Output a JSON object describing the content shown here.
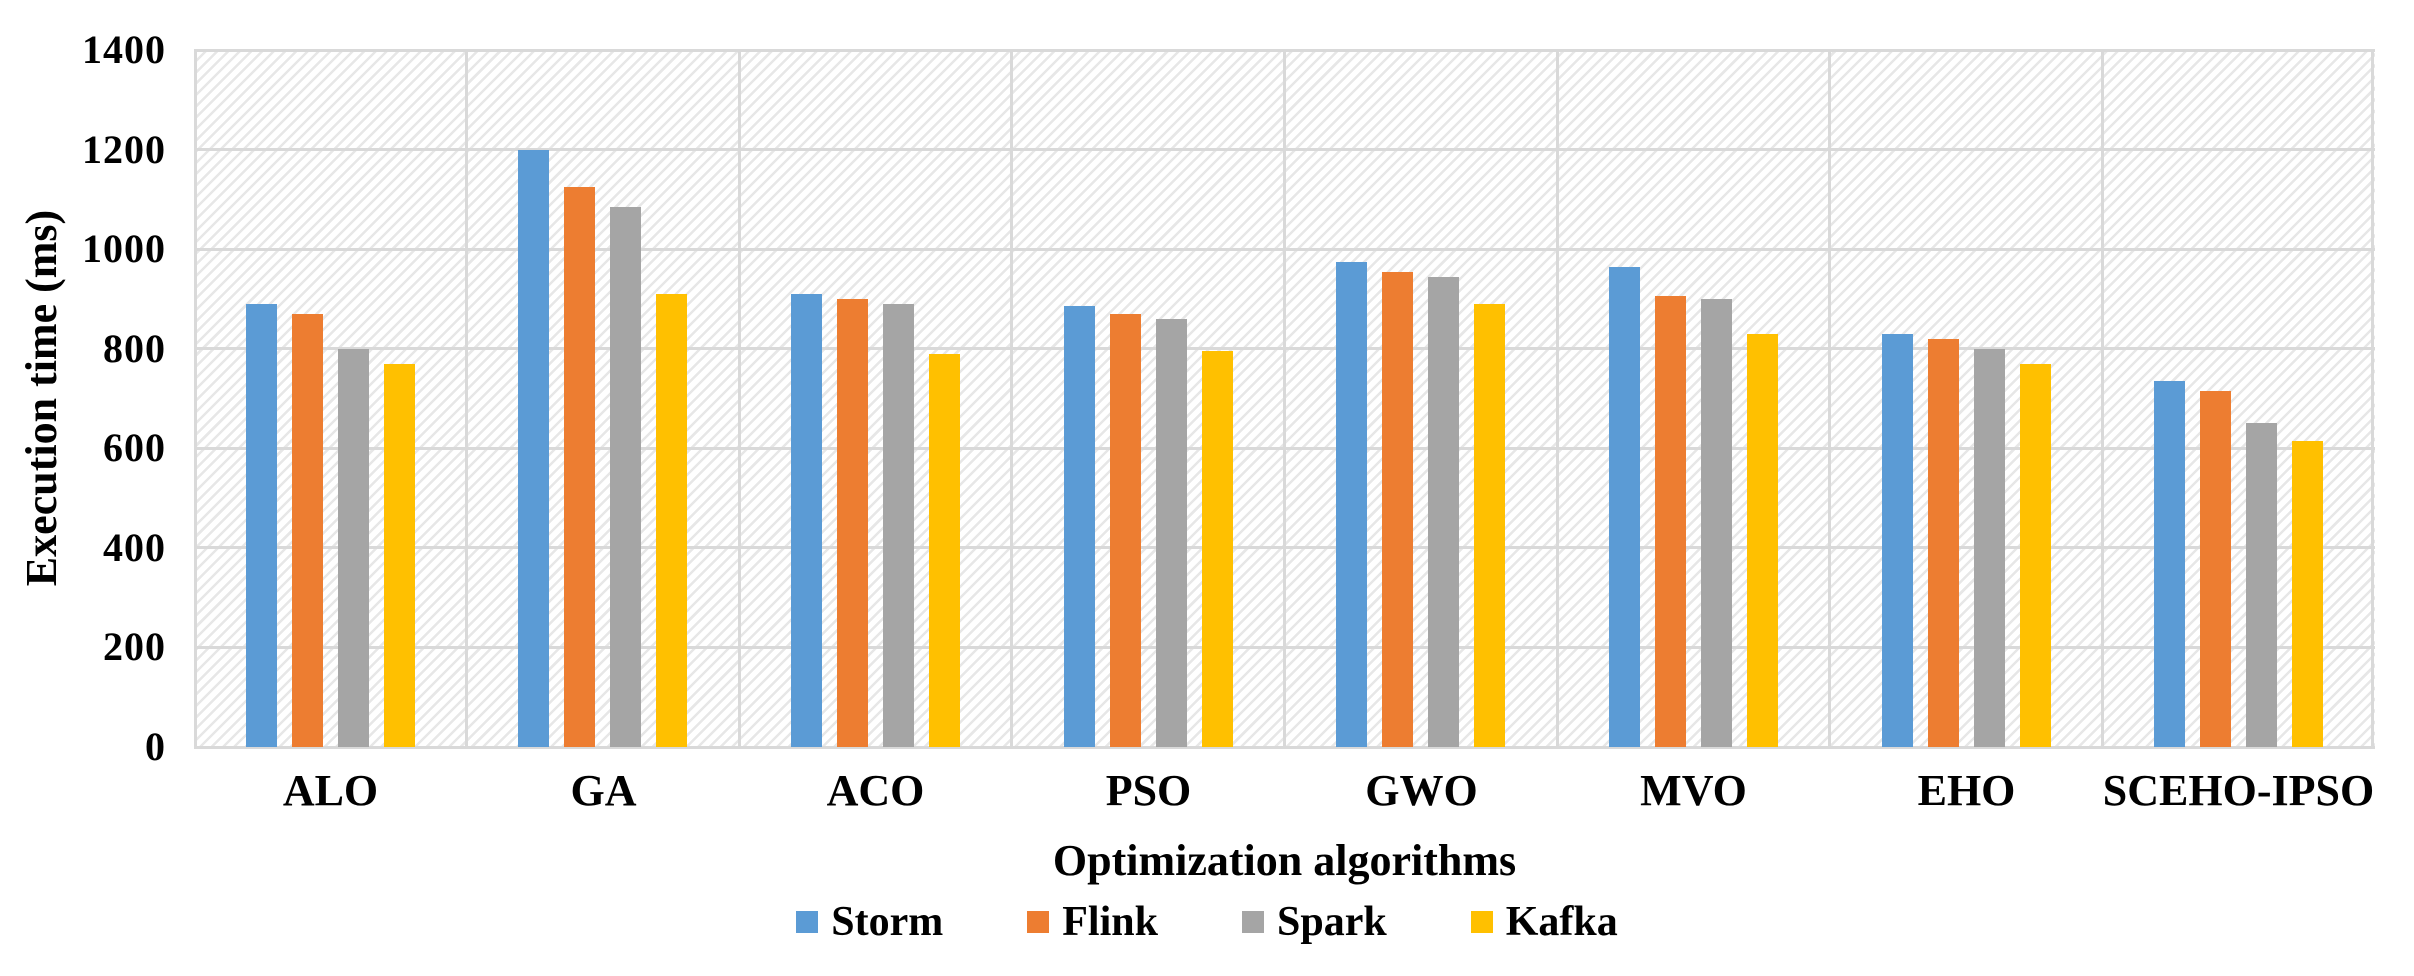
{
  "chart_data": {
    "type": "bar",
    "title": "",
    "xlabel": "Optimization algorithms",
    "ylabel": "Execution time (ms)",
    "categories": [
      "ALO",
      "GA",
      "ACO",
      "PSO",
      "GWO",
      "MVO",
      "EHO",
      "SCEHO-IPSO"
    ],
    "series": [
      {
        "name": "Storm",
        "color": "#5B9BD5",
        "values": [
          890,
          1200,
          910,
          885,
          975,
          965,
          830,
          735
        ]
      },
      {
        "name": "Flink",
        "color": "#ED7D31",
        "values": [
          870,
          1125,
          900,
          870,
          955,
          905,
          820,
          715
        ]
      },
      {
        "name": "Spark",
        "color": "#A5A5A5",
        "values": [
          800,
          1085,
          890,
          860,
          945,
          900,
          800,
          650
        ]
      },
      {
        "name": "Kafka",
        "color": "#FFC000",
        "values": [
          770,
          910,
          790,
          795,
          890,
          830,
          770,
          615
        ]
      }
    ],
    "ylim": [
      0,
      1400
    ],
    "ytick_step": 200,
    "yticks": [
      "0",
      "200",
      "400",
      "600",
      "800",
      "1000",
      "1200",
      "1400"
    ],
    "grid": true,
    "legend_position": "bottom",
    "plot_background": "diagonal-hatch",
    "gridline_color": "#d9d9d9"
  }
}
